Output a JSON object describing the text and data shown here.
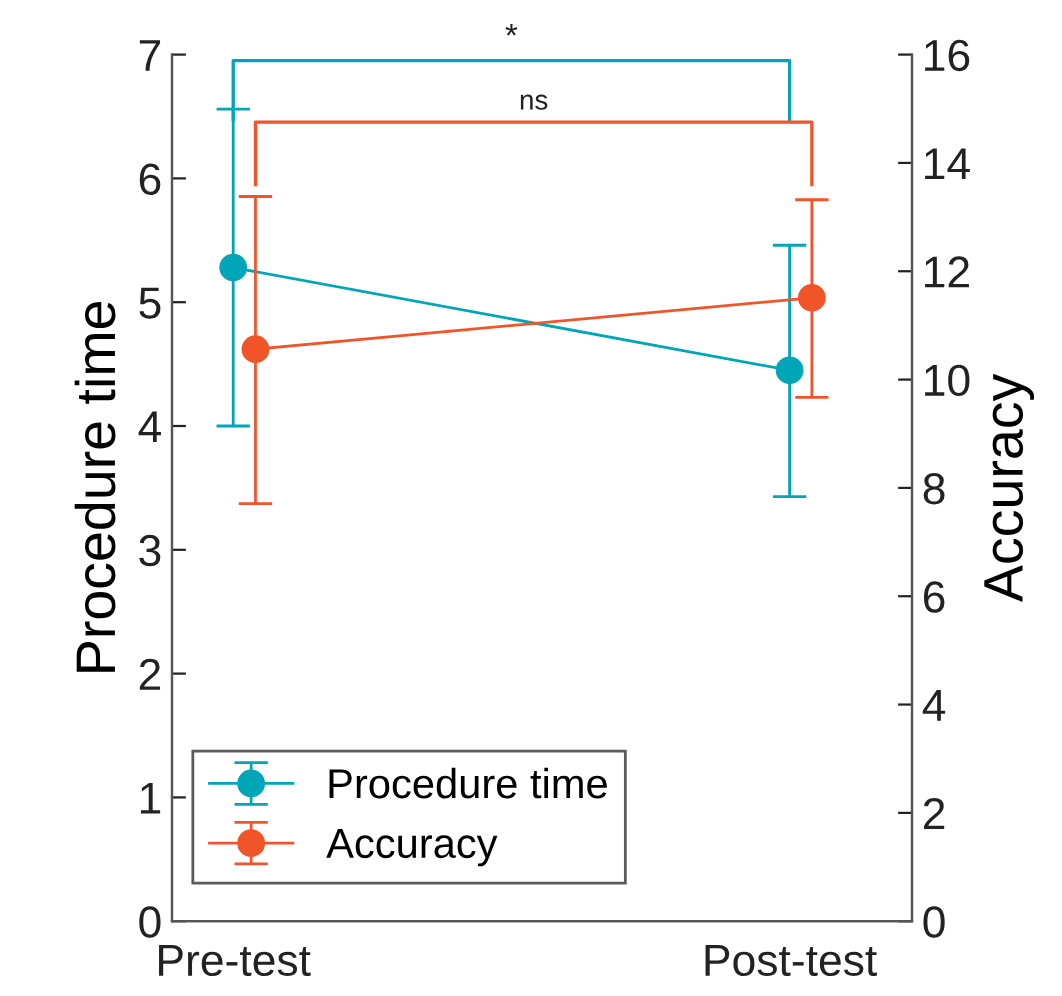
{
  "chart_data": {
    "type": "line",
    "categories": [
      "Pre-test",
      "Post-test"
    ],
    "series": [
      {
        "name": "Procedure time",
        "color": "#00a5b8",
        "values": [
          5.28,
          4.45
        ],
        "errors": [
          [
            4.0,
            6.56
          ],
          [
            3.43,
            5.46
          ]
        ]
      },
      {
        "name": "Accuracy",
        "color": "#f0552a",
        "values": [
          10.56,
          11.51
        ],
        "errors": [
          [
            7.71,
            13.38
          ],
          [
            9.67,
            13.32
          ]
        ],
        "axis": "y2"
      }
    ],
    "ylabel": "Procedure time",
    "y2label": "Accuracy",
    "ylim": [
      0,
      7
    ],
    "yticks": [
      0,
      1,
      2,
      3,
      4,
      5,
      6,
      7
    ],
    "y2lim": [
      0,
      16
    ],
    "y2ticks": [
      0,
      2,
      4,
      6,
      8,
      10,
      12,
      14,
      16
    ],
    "annotations": [
      "*",
      "ns"
    ],
    "marker": "circle",
    "line_style": "solid",
    "legend": "bottom left",
    "grid": false
  }
}
